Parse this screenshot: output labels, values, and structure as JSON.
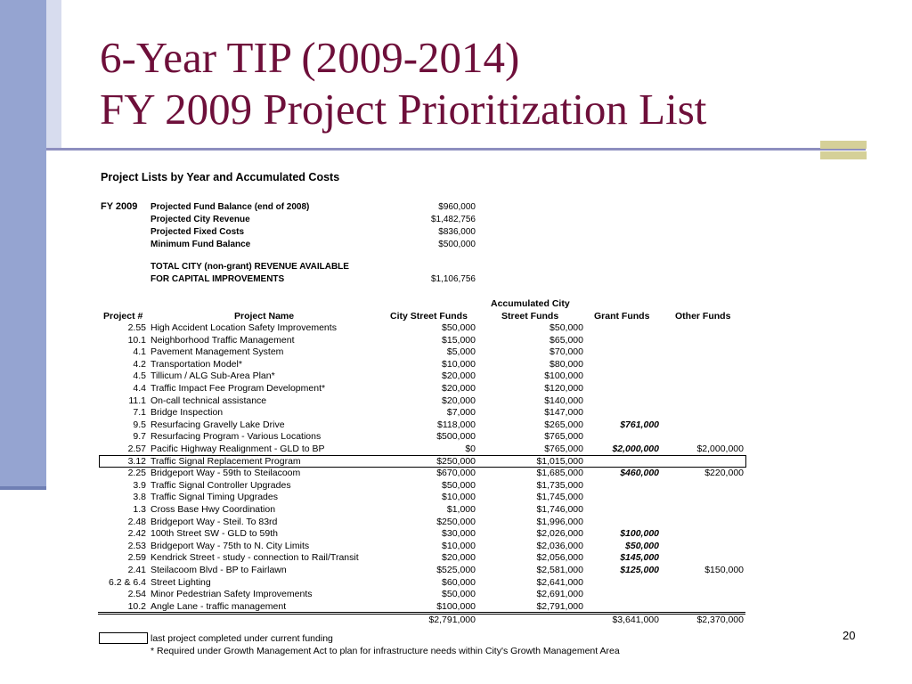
{
  "title": {
    "line1": "6-Year TIP (2009-2014)",
    "line2": "FY 2009 Project Prioritization List"
  },
  "heading": "Project Lists by Year and Accumulated Costs",
  "fy_label": "FY 2009",
  "balances": [
    {
      "label": "Projected Fund Balance (end of 2008)",
      "value": "$960,000"
    },
    {
      "label": "Projected City Revenue",
      "value": "$1,482,756"
    },
    {
      "label": "Projected Fixed Costs",
      "value": "$836,000"
    },
    {
      "label": "Minimum Fund Balance",
      "value": "$500,000"
    }
  ],
  "total_city": {
    "line1": "TOTAL CITY (non-grant) REVENUE AVAILABLE",
    "line2": "FOR CAPITAL IMPROVEMENTS",
    "value": "$1,106,756"
  },
  "columns": {
    "project_num": "Project #",
    "project_name": "Project Name",
    "city_funds": "City Street Funds",
    "accum_line1": "Accumulated City",
    "accum_line2": "Street Funds",
    "grant_funds": "Grant Funds",
    "other_funds": "Other Funds"
  },
  "rows": [
    {
      "num": "2.55",
      "name": "High Accident Location Safety Improvements",
      "city": "$50,000",
      "accum": "$50,000",
      "grant": "",
      "other": ""
    },
    {
      "num": "10.1",
      "name": "Neighborhood Traffic Management",
      "city": "$15,000",
      "accum": "$65,000",
      "grant": "",
      "other": ""
    },
    {
      "num": "4.1",
      "name": "Pavement Management System",
      "city": "$5,000",
      "accum": "$70,000",
      "grant": "",
      "other": ""
    },
    {
      "num": "4.2",
      "name": "Transportation Model*",
      "city": "$10,000",
      "accum": "$80,000",
      "grant": "",
      "other": ""
    },
    {
      "num": "4.5",
      "name": "Tillicum / ALG Sub-Area Plan*",
      "city": "$20,000",
      "accum": "$100,000",
      "grant": "",
      "other": ""
    },
    {
      "num": "4.4",
      "name": "Traffic Impact Fee Program Development*",
      "city": "$20,000",
      "accum": "$120,000",
      "grant": "",
      "other": ""
    },
    {
      "num": "11.1",
      "name": "On-call technical assistance",
      "city": "$20,000",
      "accum": "$140,000",
      "grant": "",
      "other": ""
    },
    {
      "num": "7.1",
      "name": "Bridge Inspection",
      "city": "$7,000",
      "accum": "$147,000",
      "grant": "",
      "other": ""
    },
    {
      "num": "9.5",
      "name": "Resurfacing Gravelly Lake Drive",
      "city": "$118,000",
      "accum": "$265,000",
      "grant": "$761,000",
      "other": ""
    },
    {
      "num": "9.7",
      "name": "Resurfacing Program - Various Locations",
      "city": "$500,000",
      "accum": "$765,000",
      "grant": "",
      "other": ""
    },
    {
      "num": "2.57",
      "name": "Pacific Highway Realignment - GLD to BP",
      "city": "$0",
      "accum": "$765,000",
      "grant": "$2,000,000",
      "other": "$2,000,000"
    },
    {
      "num": "3.12",
      "name": "Traffic Signal Replacement Program",
      "city": "$250,000",
      "accum": "$1,015,000",
      "grant": "",
      "other": ""
    },
    {
      "num": "2.25",
      "name": "Bridgeport Way - 59th to Steilacoom",
      "city": "$670,000",
      "accum": "$1,685,000",
      "grant": "$460,000",
      "other": "$220,000"
    },
    {
      "num": "3.9",
      "name": "Traffic Signal Controller Upgrades",
      "city": "$50,000",
      "accum": "$1,735,000",
      "grant": "",
      "other": ""
    },
    {
      "num": "3.8",
      "name": "Traffic Signal Timing Upgrades",
      "city": "$10,000",
      "accum": "$1,745,000",
      "grant": "",
      "other": ""
    },
    {
      "num": "1.3",
      "name": "Cross Base Hwy Coordination",
      "city": "$1,000",
      "accum": "$1,746,000",
      "grant": "",
      "other": ""
    },
    {
      "num": "2.48",
      "name": "Bridgeport Way - Steil. To 83rd",
      "city": "$250,000",
      "accum": "$1,996,000",
      "grant": "",
      "other": ""
    },
    {
      "num": "2.42",
      "name": "100th Street SW - GLD to 59th",
      "city": "$30,000",
      "accum": "$2,026,000",
      "grant": "$100,000",
      "other": ""
    },
    {
      "num": "2.53",
      "name": "Bridgeport Way - 75th to N. City Limits",
      "city": "$10,000",
      "accum": "$2,036,000",
      "grant": "$50,000",
      "other": ""
    },
    {
      "num": "2.59",
      "name": "Kendrick Street - study - connection to Rail/Transit",
      "city": "$20,000",
      "accum": "$2,056,000",
      "grant": "$145,000",
      "other": ""
    },
    {
      "num": "2.41",
      "name": "Steilacoom Blvd - BP to Fairlawn",
      "city": "$525,000",
      "accum": "$2,581,000",
      "grant": "$125,000",
      "other": "$150,000"
    },
    {
      "num": "6.2 & 6.4",
      "name": "Street Lighting",
      "city": "$60,000",
      "accum": "$2,641,000",
      "grant": "",
      "other": ""
    },
    {
      "num": "2.54",
      "name": "Minor Pedestrian Safety Improvements",
      "city": "$50,000",
      "accum": "$2,691,000",
      "grant": "",
      "other": ""
    },
    {
      "num": "10.2",
      "name": "Angle Lane - traffic management",
      "city": "$100,000",
      "accum": "$2,791,000",
      "grant": "",
      "other": ""
    }
  ],
  "totals": {
    "city": "$2,791,000",
    "grant": "$3,641,000",
    "other": "$2,370,000"
  },
  "legend": {
    "box_note": "last project completed under current funding",
    "footnote": "* Required under Growth Management Act to plan for infrastructure needs within City's Growth Management Area"
  },
  "page_number": "20",
  "colors": {
    "title": "#6e0f3a",
    "left_bar": "#95a4d1",
    "rule": "#8e8fbf",
    "accent_block": "#d5d098"
  }
}
